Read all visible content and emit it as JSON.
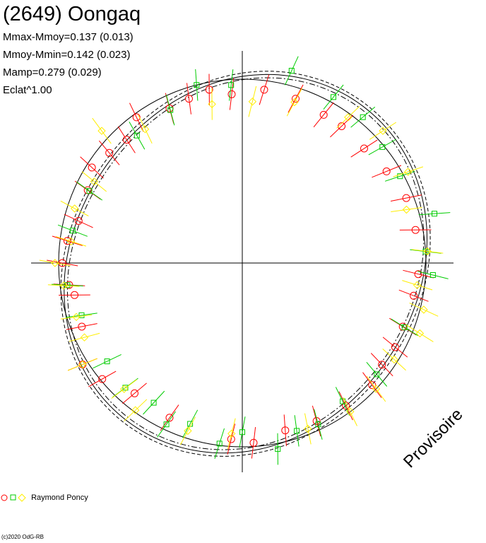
{
  "title": "(2649) Oongaq",
  "stats": [
    "Mmax-Mmoy=0.137 (0.013)",
    "Mmoy-Mmin=0.142 (0.023)",
    "Mamp=0.279 (0.029)",
    "Eclat^1.00"
  ],
  "watermark": "Provisoire",
  "legend_label": "Raymond Poncy",
  "copyright": "(c)2020 OdG-RB",
  "colors": {
    "session1": "#ff0000",
    "session2": "#00cc00",
    "session3": "#ffee00",
    "axis": "#000000"
  },
  "chart_data": {
    "type": "scatter",
    "projection": "polar",
    "description_of_axes": "phase around circle, relative brightness as radius",
    "reference_circle_radius": 1.0,
    "series": [
      {
        "marker": "circle",
        "color": "#ff0000",
        "points": [
          {
            "phase": 0.57,
            "r": 0.93
          },
          {
            "phase": 0.61,
            "r": 0.92
          },
          {
            "phase": 0.64,
            "r": 0.99
          },
          {
            "phase": 0.66,
            "r": 1.03
          },
          {
            "phase": 0.69,
            "r": 0.94
          },
          {
            "phase": 0.72,
            "r": 0.93
          },
          {
            "phase": 0.73,
            "r": 0.95
          },
          {
            "phase": 0.75,
            "r": 0.98
          },
          {
            "phase": 0.77,
            "r": 0.96
          },
          {
            "phase": 0.79,
            "r": 0.92
          },
          {
            "phase": 0.82,
            "r": 0.93
          },
          {
            "phase": 0.84,
            "r": 0.97
          },
          {
            "phase": 0.86,
            "r": 0.94
          },
          {
            "phase": 0.88,
            "r": 0.92
          },
          {
            "phase": 0.9,
            "r": 0.98
          },
          {
            "phase": 0.93,
            "r": 0.93
          },
          {
            "phase": 0.95,
            "r": 0.94
          },
          {
            "phase": 0.97,
            "r": 0.96
          },
          {
            "phase": 0.99,
            "r": 0.92
          },
          {
            "phase": 0.02,
            "r": 0.95
          },
          {
            "phase": 0.05,
            "r": 0.94
          },
          {
            "phase": 0.08,
            "r": 0.92
          },
          {
            "phase": 0.1,
            "r": 0.92
          },
          {
            "phase": 0.13,
            "r": 0.91
          },
          {
            "phase": 0.16,
            "r": 0.93
          },
          {
            "phase": 0.19,
            "r": 0.96
          },
          {
            "phase": 0.22,
            "r": 0.96
          },
          {
            "phase": 0.26,
            "r": 0.96
          },
          {
            "phase": 0.28,
            "r": 0.95
          },
          {
            "phase": 0.31,
            "r": 0.94
          },
          {
            "phase": 0.33,
            "r": 0.95
          },
          {
            "phase": 0.35,
            "r": 0.94
          },
          {
            "phase": 0.37,
            "r": 0.97
          },
          {
            "phase": 0.4,
            "r": 0.96
          },
          {
            "phase": 0.43,
            "r": 0.95
          },
          {
            "phase": 0.46,
            "r": 0.94
          },
          {
            "phase": 0.49,
            "r": 0.98
          },
          {
            "phase": 0.51,
            "r": 0.96
          }
        ]
      },
      {
        "marker": "square",
        "color": "#00cc00",
        "points": [
          {
            "phase": 0.5,
            "r": 0.92
          },
          {
            "phase": 0.52,
            "r": 0.99
          },
          {
            "phase": 0.55,
            "r": 0.92
          },
          {
            "phase": 0.57,
            "r": 0.97
          },
          {
            "phase": 0.59,
            "r": 0.9
          },
          {
            "phase": 0.62,
            "r": 0.93
          },
          {
            "phase": 0.65,
            "r": 0.91
          },
          {
            "phase": 0.7,
            "r": 0.92
          },
          {
            "phase": 0.73,
            "r": 0.96
          },
          {
            "phase": 0.78,
            "r": 0.94
          },
          {
            "phase": 0.82,
            "r": 0.92
          },
          {
            "phase": 0.89,
            "r": 0.9
          },
          {
            "phase": 0.93,
            "r": 0.92
          },
          {
            "phase": 0.96,
            "r": 1.0
          },
          {
            "phase": 0.99,
            "r": 0.97
          },
          {
            "phase": 0.04,
            "r": 1.08
          },
          {
            "phase": 0.08,
            "r": 1.03
          },
          {
            "phase": 0.11,
            "r": 1.03
          },
          {
            "phase": 0.14,
            "r": 0.99
          },
          {
            "phase": 0.17,
            "r": 0.98
          },
          {
            "phase": 0.21,
            "r": 1.08
          },
          {
            "phase": 0.24,
            "r": 1.0
          },
          {
            "phase": 0.26,
            "r": 1.04
          },
          {
            "phase": 0.31,
            "r": 0.95
          },
          {
            "phase": 0.36,
            "r": 0.95
          },
          {
            "phase": 0.4,
            "r": 0.93
          },
          {
            "phase": 0.43,
            "r": 0.97
          },
          {
            "phase": 0.45,
            "r": 0.96
          },
          {
            "phase": 0.47,
            "r": 1.03
          }
        ]
      },
      {
        "marker": "diamond",
        "color": "#ffee00",
        "points": [
          {
            "phase": 0.51,
            "r": 0.93
          },
          {
            "phase": 0.55,
            "r": 0.96
          },
          {
            "phase": 0.6,
            "r": 0.99
          },
          {
            "phase": 0.62,
            "r": 0.94
          },
          {
            "phase": 0.66,
            "r": 1.03
          },
          {
            "phase": 0.68,
            "r": 0.95
          },
          {
            "phase": 0.7,
            "r": 0.95
          },
          {
            "phase": 0.73,
            "r": 0.98
          },
          {
            "phase": 0.75,
            "r": 1.02
          },
          {
            "phase": 0.77,
            "r": 0.94
          },
          {
            "phase": 0.8,
            "r": 0.96
          },
          {
            "phase": 0.83,
            "r": 0.92
          },
          {
            "phase": 0.87,
            "r": 1.05
          },
          {
            "phase": 0.9,
            "r": 0.9
          },
          {
            "phase": 0.97,
            "r": 0.88
          },
          {
            "phase": 0.01,
            "r": 0.88
          },
          {
            "phase": 0.05,
            "r": 0.92
          },
          {
            "phase": 0.1,
            "r": 0.98
          },
          {
            "phase": 0.13,
            "r": 1.05
          },
          {
            "phase": 0.17,
            "r": 1.03
          },
          {
            "phase": 0.2,
            "r": 0.94
          },
          {
            "phase": 0.24,
            "r": 1.01
          },
          {
            "phase": 0.27,
            "r": 0.96
          },
          {
            "phase": 0.29,
            "r": 1.02
          },
          {
            "phase": 0.31,
            "r": 1.04
          },
          {
            "phase": 0.34,
            "r": 0.98
          },
          {
            "phase": 0.37,
            "r": 1.0
          },
          {
            "phase": 0.4,
            "r": 1.0
          },
          {
            "phase": 0.44,
            "r": 0.97
          }
        ]
      }
    ]
  }
}
